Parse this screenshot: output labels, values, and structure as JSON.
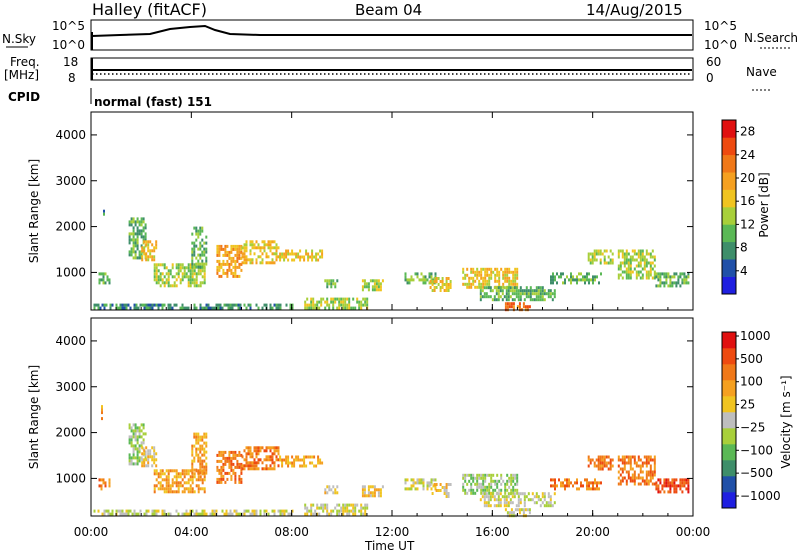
{
  "header": {
    "title": "Halley (fitACF)",
    "beam": "Beam 04",
    "date": "14/Aug/2015"
  },
  "sky_panel": {
    "left_label": "N.Sky",
    "right_label": "N.Search",
    "left_ticks": [
      "10^5",
      "10^0"
    ],
    "right_ticks": [
      "10^5",
      "10^0"
    ]
  },
  "freq_panel": {
    "left_label": "Freq.",
    "left_unit": "[MHz]",
    "left_ticks": [
      "18",
      "8"
    ],
    "right_label": "Nave",
    "right_ticks": [
      "60",
      "0"
    ]
  },
  "cpid": {
    "label": "CPID",
    "text": "normal (fast) 151"
  },
  "chart_data": [
    {
      "type": "heatmap",
      "name": "power",
      "ylabel": "Slant Range [km]",
      "yticks": [
        "1000",
        "2000",
        "3000",
        "4000"
      ],
      "yvalues": [
        1000,
        2000,
        3000,
        4000
      ],
      "ylim": [
        180,
        4500
      ],
      "xlim": [
        0,
        24
      ],
      "xticks": [
        "00:00",
        "04:00",
        "08:00",
        "12:00",
        "16:00",
        "20:00",
        "00:00"
      ],
      "xvalues": [
        0,
        4,
        8,
        12,
        16,
        20,
        24
      ],
      "colorbar": {
        "label": "Power [dB]",
        "ticks": [
          "4",
          "8",
          "12",
          "16",
          "20",
          "24",
          "28"
        ],
        "colors": [
          "#1f1fe0",
          "#2050a8",
          "#3e8e6a",
          "#5ab855",
          "#a8cf3a",
          "#f0c420",
          "#f5a020",
          "#f07818",
          "#ee4a10",
          "#e01010"
        ]
      },
      "regions": [
        {
          "t0": 0.1,
          "t1": 8.0,
          "r0": 200,
          "r1": 320,
          "level": 2
        },
        {
          "t0": 0.3,
          "t1": 0.7,
          "r0": 800,
          "r1": 1000,
          "level": 3
        },
        {
          "t0": 0.4,
          "t1": 0.5,
          "r0": 2300,
          "r1": 2500,
          "level": 2
        },
        {
          "t0": 1.5,
          "t1": 2.2,
          "r0": 1300,
          "r1": 2200,
          "level": 3
        },
        {
          "t0": 2.0,
          "t1": 2.6,
          "r0": 1300,
          "r1": 1700,
          "level": 5
        },
        {
          "t0": 2.5,
          "t1": 4.5,
          "r0": 700,
          "r1": 1200,
          "level": 4
        },
        {
          "t0": 4.0,
          "t1": 4.6,
          "r0": 1100,
          "r1": 2000,
          "level": 3
        },
        {
          "t0": 5.0,
          "t1": 6.0,
          "r0": 900,
          "r1": 1600,
          "level": 6
        },
        {
          "t0": 6.0,
          "t1": 7.5,
          "r0": 1200,
          "r1": 1700,
          "level": 5
        },
        {
          "t0": 7.5,
          "t1": 9.2,
          "r0": 1300,
          "r1": 1500,
          "level": 5
        },
        {
          "t0": 9.3,
          "t1": 9.8,
          "r0": 700,
          "r1": 850,
          "level": 3
        },
        {
          "t0": 8.5,
          "t1": 11.0,
          "r0": 250,
          "r1": 450,
          "level": 4
        },
        {
          "t0": 10.8,
          "t1": 11.6,
          "r0": 650,
          "r1": 850,
          "level": 4
        },
        {
          "t0": 12.5,
          "t1": 13.7,
          "r0": 800,
          "r1": 1000,
          "level": 3
        },
        {
          "t0": 13.5,
          "t1": 14.3,
          "r0": 600,
          "r1": 900,
          "level": 5
        },
        {
          "t0": 14.8,
          "t1": 17.0,
          "r0": 700,
          "r1": 1100,
          "level": 5
        },
        {
          "t0": 15.5,
          "t1": 18.5,
          "r0": 400,
          "r1": 700,
          "level": 3
        },
        {
          "t0": 16.5,
          "t1": 17.5,
          "r0": 200,
          "r1": 350,
          "level": 7
        },
        {
          "t0": 18.3,
          "t1": 20.3,
          "r0": 800,
          "r1": 1000,
          "level": 3
        },
        {
          "t0": 19.8,
          "t1": 20.8,
          "r0": 1200,
          "r1": 1500,
          "level": 4
        },
        {
          "t0": 21.0,
          "t1": 22.5,
          "r0": 900,
          "r1": 1500,
          "level": 4
        },
        {
          "t0": 22.5,
          "t1": 23.8,
          "r0": 700,
          "r1": 1000,
          "level": 3
        }
      ]
    },
    {
      "type": "heatmap",
      "name": "velocity",
      "ylabel": "Slant Range [km]",
      "yticks": [
        "1000",
        "2000",
        "3000",
        "4000"
      ],
      "yvalues": [
        1000,
        2000,
        3000,
        4000
      ],
      "ylim": [
        180,
        4500
      ],
      "xlim": [
        0,
        24
      ],
      "xticks": [
        "00:00",
        "04:00",
        "08:00",
        "12:00",
        "16:00",
        "20:00",
        "00:00"
      ],
      "xvalues": [
        0,
        4,
        8,
        12,
        16,
        20,
        24
      ],
      "xlabel": "Time UT",
      "colorbar": {
        "label": "Velocity [m s⁻¹]",
        "ticks": [
          "1000",
          "500",
          "100",
          "25",
          "−25",
          "−100",
          "−500",
          "−1000"
        ],
        "colors": [
          "#1f1fe0",
          "#2050a8",
          "#3e8e6a",
          "#5ab855",
          "#a8cf3a",
          "#bebebe",
          "#f0c420",
          "#f5a020",
          "#f07818",
          "#ee4a10",
          "#e01010"
        ]
      },
      "regions": [
        {
          "t0": 0.1,
          "t1": 8.0,
          "r0": 200,
          "r1": 320,
          "level": 5
        },
        {
          "t0": 0.3,
          "t1": 0.7,
          "r0": 800,
          "r1": 1000,
          "level": 8
        },
        {
          "t0": 0.4,
          "t1": 0.5,
          "r0": 2300,
          "r1": 2600,
          "level": 7
        },
        {
          "t0": 1.5,
          "t1": 2.2,
          "r0": 1300,
          "r1": 2200,
          "level": 4
        },
        {
          "t0": 2.0,
          "t1": 2.6,
          "r0": 1300,
          "r1": 1700,
          "level": 6
        },
        {
          "t0": 2.5,
          "t1": 4.5,
          "r0": 700,
          "r1": 1200,
          "level": 7
        },
        {
          "t0": 4.0,
          "t1": 4.6,
          "r0": 1100,
          "r1": 2000,
          "level": 7
        },
        {
          "t0": 5.0,
          "t1": 6.0,
          "r0": 900,
          "r1": 1600,
          "level": 8
        },
        {
          "t0": 6.0,
          "t1": 7.5,
          "r0": 1200,
          "r1": 1700,
          "level": 8
        },
        {
          "t0": 7.5,
          "t1": 9.2,
          "r0": 1300,
          "r1": 1500,
          "level": 7
        },
        {
          "t0": 9.3,
          "t1": 9.8,
          "r0": 700,
          "r1": 850,
          "level": 6
        },
        {
          "t0": 8.5,
          "t1": 11.0,
          "r0": 250,
          "r1": 450,
          "level": 5
        },
        {
          "t0": 10.8,
          "t1": 11.6,
          "r0": 650,
          "r1": 850,
          "level": 6
        },
        {
          "t0": 12.5,
          "t1": 13.7,
          "r0": 800,
          "r1": 1000,
          "level": 5
        },
        {
          "t0": 13.5,
          "t1": 14.3,
          "r0": 600,
          "r1": 900,
          "level": 6
        },
        {
          "t0": 14.8,
          "t1": 17.0,
          "r0": 700,
          "r1": 1100,
          "level": 4
        },
        {
          "t0": 15.5,
          "t1": 18.5,
          "r0": 400,
          "r1": 700,
          "level": 5
        },
        {
          "t0": 16.5,
          "t1": 17.5,
          "r0": 200,
          "r1": 350,
          "level": 5
        },
        {
          "t0": 18.3,
          "t1": 20.3,
          "r0": 800,
          "r1": 1000,
          "level": 8
        },
        {
          "t0": 19.8,
          "t1": 20.8,
          "r0": 1200,
          "r1": 1500,
          "level": 8
        },
        {
          "t0": 21.0,
          "t1": 22.5,
          "r0": 900,
          "r1": 1500,
          "level": 8
        },
        {
          "t0": 22.5,
          "t1": 23.8,
          "r0": 700,
          "r1": 1000,
          "level": 9
        }
      ]
    }
  ]
}
